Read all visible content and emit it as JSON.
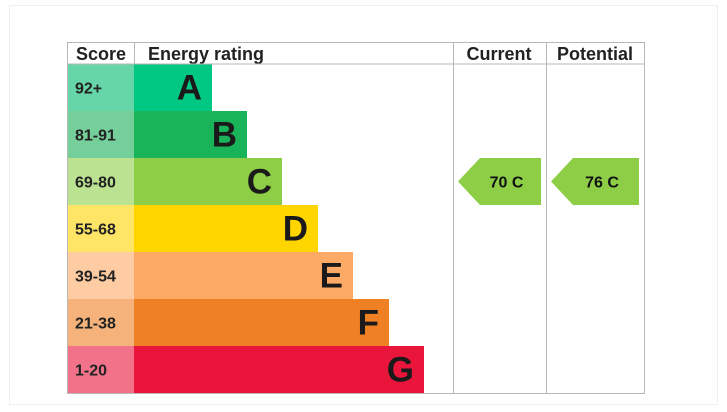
{
  "headers": {
    "score": "Score",
    "energy_rating": "Energy rating",
    "current": "Current",
    "potential": "Potential"
  },
  "chart_data": {
    "type": "bar",
    "title": "",
    "bands": [
      {
        "letter": "A",
        "score": "92+",
        "color": "#00c781",
        "score_bg": "#66d5a8",
        "width_ratio": 0.243
      },
      {
        "letter": "B",
        "score": "81-91",
        "color": "#19b459",
        "score_bg": "#75cf9b",
        "width_ratio": 0.353
      },
      {
        "letter": "C",
        "score": "69-80",
        "color": "#8dce46",
        "score_bg": "#bbe290",
        "width_ratio": 0.463
      },
      {
        "letter": "D",
        "score": "55-68",
        "color": "#ffd500",
        "score_bg": "#ffe566",
        "width_ratio": 0.577
      },
      {
        "letter": "E",
        "score": "39-54",
        "color": "#fcaa65",
        "score_bg": "#fdcca3",
        "width_ratio": 0.687
      },
      {
        "letter": "F",
        "score": "21-38",
        "color": "#ef8023",
        "score_bg": "#f5b37b",
        "width_ratio": 0.798
      },
      {
        "letter": "G",
        "score": "1-20",
        "color": "#e9153b",
        "score_bg": "#f27389",
        "width_ratio": 0.908
      }
    ],
    "current": {
      "value": 70,
      "letter": "C",
      "label": "70  C",
      "color": "#8dce46"
    },
    "potential": {
      "value": 76,
      "letter": "C",
      "label": "76  C",
      "color": "#8dce46"
    }
  }
}
